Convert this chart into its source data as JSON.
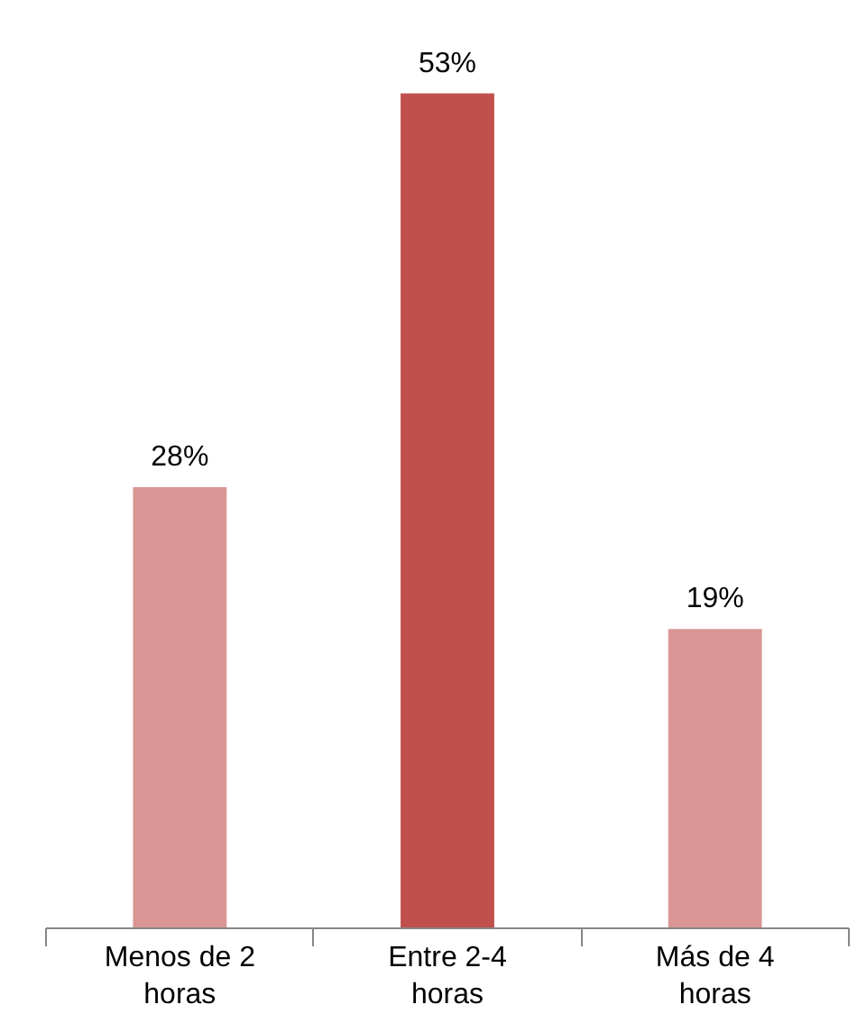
{
  "chart_data": {
    "type": "bar",
    "categories": [
      "Menos de 2 horas",
      "Entre 2-4 horas",
      "Más de 4 horas"
    ],
    "values": [
      28,
      53,
      19
    ],
    "value_labels": [
      "28%",
      "53%",
      "19%"
    ],
    "colors": [
      "#d99694",
      "#c0504d",
      "#d99694"
    ]
  }
}
